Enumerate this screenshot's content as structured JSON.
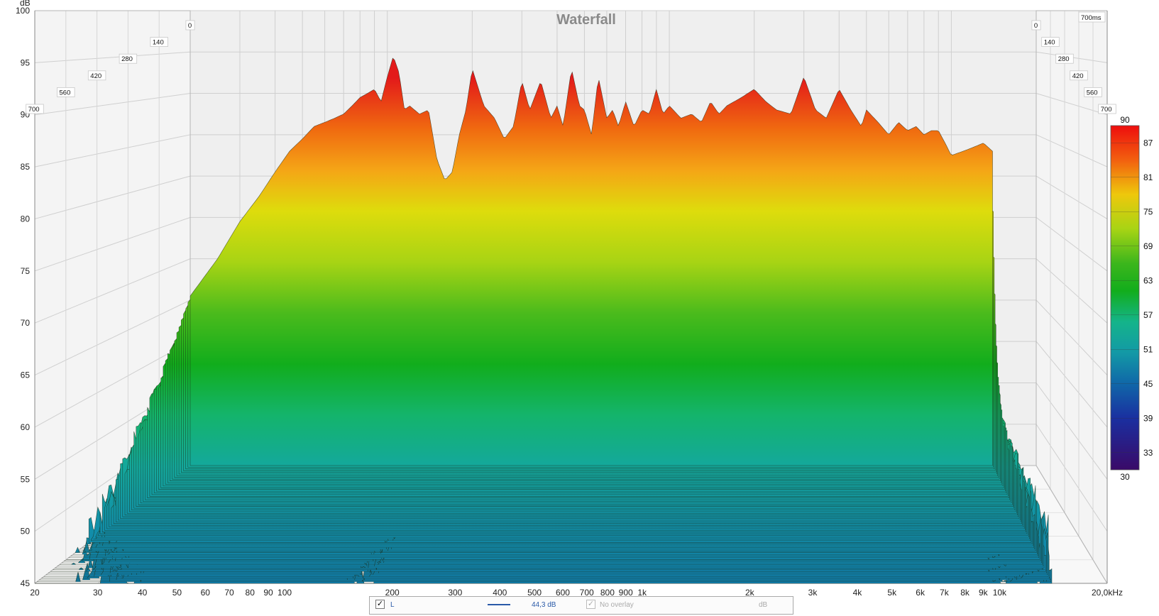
{
  "chart_data": {
    "type": "area",
    "title": "Waterfall",
    "ylabel": "dB",
    "ylim": [
      45,
      100
    ],
    "yticks": [
      "100",
      "95",
      "90",
      "85",
      "80",
      "75",
      "70",
      "65",
      "60",
      "55",
      "50",
      "45"
    ],
    "xscale": "log",
    "xlim": [
      20,
      20000
    ],
    "xticks": [
      {
        "v": 20,
        "label": "20"
      },
      {
        "v": 30,
        "label": "30"
      },
      {
        "v": 40,
        "label": "40"
      },
      {
        "v": 50,
        "label": "50"
      },
      {
        "v": 60,
        "label": "60"
      },
      {
        "v": 70,
        "label": "70"
      },
      {
        "v": 80,
        "label": "80"
      },
      {
        "v": 90,
        "label": "90"
      },
      {
        "v": 100,
        "label": "100"
      },
      {
        "v": 200,
        "label": "200"
      },
      {
        "v": 300,
        "label": "300"
      },
      {
        "v": 400,
        "label": "400"
      },
      {
        "v": 500,
        "label": "500"
      },
      {
        "v": 600,
        "label": "600"
      },
      {
        "v": 700,
        "label": "700"
      },
      {
        "v": 800,
        "label": "800"
      },
      {
        "v": 900,
        "label": "900"
      },
      {
        "v": 1000,
        "label": "1k"
      },
      {
        "v": 2000,
        "label": "2k"
      },
      {
        "v": 3000,
        "label": "3k"
      },
      {
        "v": 4000,
        "label": "4k"
      },
      {
        "v": 5000,
        "label": "5k"
      },
      {
        "v": 6000,
        "label": "6k"
      },
      {
        "v": 7000,
        "label": "7k"
      },
      {
        "v": 8000,
        "label": "8k"
      },
      {
        "v": 9000,
        "label": "9k"
      },
      {
        "v": 10000,
        "label": "10k"
      },
      {
        "v": 20000,
        "label": "20,0kHz"
      }
    ],
    "depth_axis": {
      "unit_label": "700ms",
      "ticks": [
        "0",
        "140",
        "280",
        "420",
        "560",
        "700"
      ]
    },
    "colorbar": {
      "min": 30,
      "max": 90,
      "ticks": [
        "90",
        "87",
        "81",
        "75",
        "69",
        "63",
        "57",
        "51",
        "45",
        "39",
        "33",
        "30"
      ]
    },
    "first_slice": {
      "freq": [
        20,
        25,
        30,
        35,
        40,
        45,
        50,
        55,
        60,
        65,
        70,
        75,
        80,
        85,
        90,
        95,
        100,
        105,
        110,
        115,
        120,
        130,
        140,
        150,
        160,
        170,
        180,
        190,
        200,
        220,
        240,
        260,
        280,
        300,
        320,
        350,
        380,
        400,
        420,
        450,
        480,
        500,
        530,
        560,
        600,
        630,
        660,
        700,
        750,
        800,
        850,
        900,
        950,
        1000,
        1100,
        1200,
        1300,
        1400,
        1500,
        1600,
        1800,
        2000,
        2200,
        2400,
        2700,
        3000,
        3300,
        3600,
        4000,
        4400,
        4800,
        5000,
        5500,
        6000,
        6500,
        7000,
        7500,
        8000,
        8500,
        9000,
        9500,
        10000,
        11000,
        12000,
        13000,
        14000
      ],
      "level_db": [
        65.5,
        70.0,
        74.5,
        77.5,
        80.5,
        83.0,
        84.5,
        86.0,
        86.5,
        87.0,
        87.5,
        88.5,
        89.5,
        90.0,
        90.5,
        89.0,
        92.0,
        94.5,
        92.5,
        88.0,
        88.5,
        87.5,
        88.0,
        82.0,
        79.5,
        80.5,
        85.0,
        88.0,
        93.0,
        88.5,
        87.0,
        84.5,
        86.0,
        91.5,
        88.0,
        91.5,
        87.0,
        88.5,
        86.0,
        93.0,
        88.5,
        88.0,
        85.0,
        92.0,
        87.0,
        88.0,
        86.0,
        89.0,
        86.0,
        88.0,
        87.5,
        90.5,
        87.5,
        88.5,
        87.0,
        87.5,
        86.5,
        89.0,
        87.5,
        88.5,
        89.5,
        90.5,
        89.0,
        88.0,
        87.5,
        92.0,
        88.0,
        87.0,
        90.5,
        88.0,
        86.0,
        88.0,
        86.5,
        85.0,
        86.5,
        85.5,
        86.0,
        85.0,
        85.5,
        85.5,
        84.0,
        82.5,
        83.0,
        83.5,
        84.0,
        83.0
      ]
    }
  },
  "legend": {
    "checkbox_mark": "✓",
    "channel": "L",
    "level": "44,3 dB",
    "overlay": "No overlay",
    "unit": "dB"
  }
}
